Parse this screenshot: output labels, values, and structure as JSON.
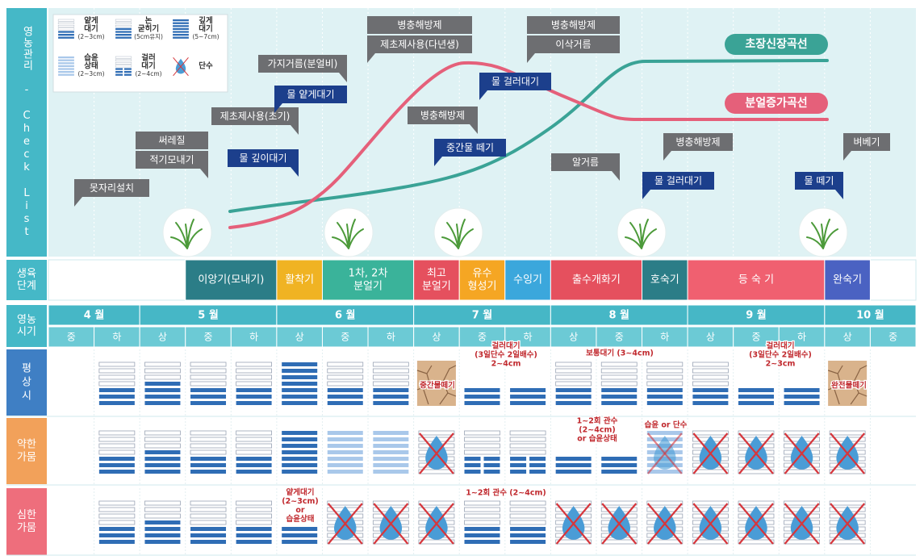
{
  "sidebar": {
    "checklist": "영농관리 - Check List",
    "stage": [
      "생육",
      "단계"
    ],
    "period": [
      "영농",
      "시기"
    ],
    "normal": [
      "평",
      "상",
      "시"
    ],
    "weak": [
      "약한",
      "가뭄"
    ],
    "severe": [
      "심한",
      "가뭄"
    ]
  },
  "legend": [
    {
      "lines": [
        "얕게",
        "대기",
        "(2~3cm)"
      ]
    },
    {
      "lines": [
        "논",
        "굳히기",
        "(5cm유지)"
      ]
    },
    {
      "lines": [
        "깊게",
        "대기",
        "(5~7cm)"
      ]
    },
    {
      "lines": [
        "습윤",
        "상태",
        "(2~3cm)"
      ]
    },
    {
      "lines": [
        "걸러",
        "대기",
        "(2~4cm)"
      ]
    },
    {
      "lines": [
        "단수"
      ]
    }
  ],
  "callouts": [
    {
      "lines": [
        "못자리설치"
      ],
      "color": "#6d6e71"
    },
    {
      "lines": [
        "써레질",
        "적기모내기"
      ],
      "color": "#6d6e71"
    },
    {
      "lines": [
        "제초제사용(초기)"
      ],
      "color": "#6d6e71"
    },
    {
      "lines": [
        "가지거름(분얼비)"
      ],
      "color": "#6d6e71"
    },
    {
      "lines": [
        "물 얕게대기"
      ],
      "color": "#1c3f8c"
    },
    {
      "lines": [
        "물 깊이대기"
      ],
      "color": "#1c3f8c"
    },
    {
      "lines": [
        "병충해방제",
        "제초제사용(다년생)"
      ],
      "color": "#6d6e71"
    },
    {
      "lines": [
        "병충해방제"
      ],
      "color": "#6d6e71"
    },
    {
      "lines": [
        "중간물 떼기"
      ],
      "color": "#1c3f8c"
    },
    {
      "lines": [
        "물 걸러대기"
      ],
      "color": "#1c3f8c"
    },
    {
      "lines": [
        "병충해방제",
        "이삭거름"
      ],
      "color": "#6d6e71"
    },
    {
      "lines": [
        "알거름"
      ],
      "color": "#6d6e71"
    },
    {
      "lines": [
        "병충해방제"
      ],
      "color": "#6d6e71"
    },
    {
      "lines": [
        "물 걸러대기"
      ],
      "color": "#1c3f8c"
    },
    {
      "lines": [
        "벼베기"
      ],
      "color": "#6d6e71"
    },
    {
      "lines": [
        "물 떼기"
      ],
      "color": "#1c3f8c"
    }
  ],
  "curves": [
    {
      "name": "초장신장곡선",
      "color": "#3aa396"
    },
    {
      "name": "분얼증가곡선",
      "color": "#e5607a"
    }
  ],
  "stages": [
    {
      "lines": [
        "이앙기(모내기)"
      ],
      "color": "#2b7d87"
    },
    {
      "lines": [
        "활착기"
      ],
      "color": "#f0b323"
    },
    {
      "lines": [
        "1차, 2차",
        "분얼기"
      ],
      "color": "#3ab39a"
    },
    {
      "lines": [
        "최고",
        "분얼기"
      ],
      "color": "#e5505e"
    },
    {
      "lines": [
        "유수",
        "형성기"
      ],
      "color": "#f5a623"
    },
    {
      "lines": [
        "수잉기"
      ],
      "color": "#3ba7dc"
    },
    {
      "lines": [
        "출수개화기"
      ],
      "color": "#e5505e"
    },
    {
      "lines": [
        "호숙기"
      ],
      "color": "#2b7d87"
    },
    {
      "lines": [
        "등 숙 기"
      ],
      "color": "#f06070"
    },
    {
      "lines": [
        "완숙기"
      ],
      "color": "#4a62c2"
    }
  ],
  "months": [
    "4 월",
    "5 월",
    "6 월",
    "7 월",
    "8 월",
    "9 월",
    "10 월"
  ],
  "periods": [
    "중",
    "하",
    "상",
    "중",
    "하",
    "상",
    "중",
    "하",
    "상",
    "중",
    "하",
    "상",
    "중",
    "하",
    "상",
    "중",
    "하",
    "상",
    "중"
  ],
  "notes": {
    "normal": [
      {
        "lines": [
          "중간물떼기"
        ]
      },
      {
        "lines": [
          "걸러대기",
          "(3일단수 2일배수)",
          "2~4cm"
        ]
      },
      {
        "lines": [
          "보통대기 (3~4cm)"
        ]
      },
      {
        "lines": [
          "걸러대기",
          "(3일단수 2일배수)",
          "2~3cm"
        ]
      },
      {
        "lines": [
          "완전물떼기"
        ]
      }
    ],
    "weak": [
      {
        "lines": [
          "1~2회 관수",
          "(2~4cm)",
          "or 습윤상태"
        ]
      },
      {
        "lines": [
          "습윤 or 단수"
        ]
      }
    ],
    "severe": [
      {
        "lines": [
          "얕게대기",
          "(2~3cm)",
          "or",
          "습윤상태"
        ]
      },
      {
        "lines": [
          "1~2회 관수 (2~4cm)"
        ]
      }
    ]
  }
}
